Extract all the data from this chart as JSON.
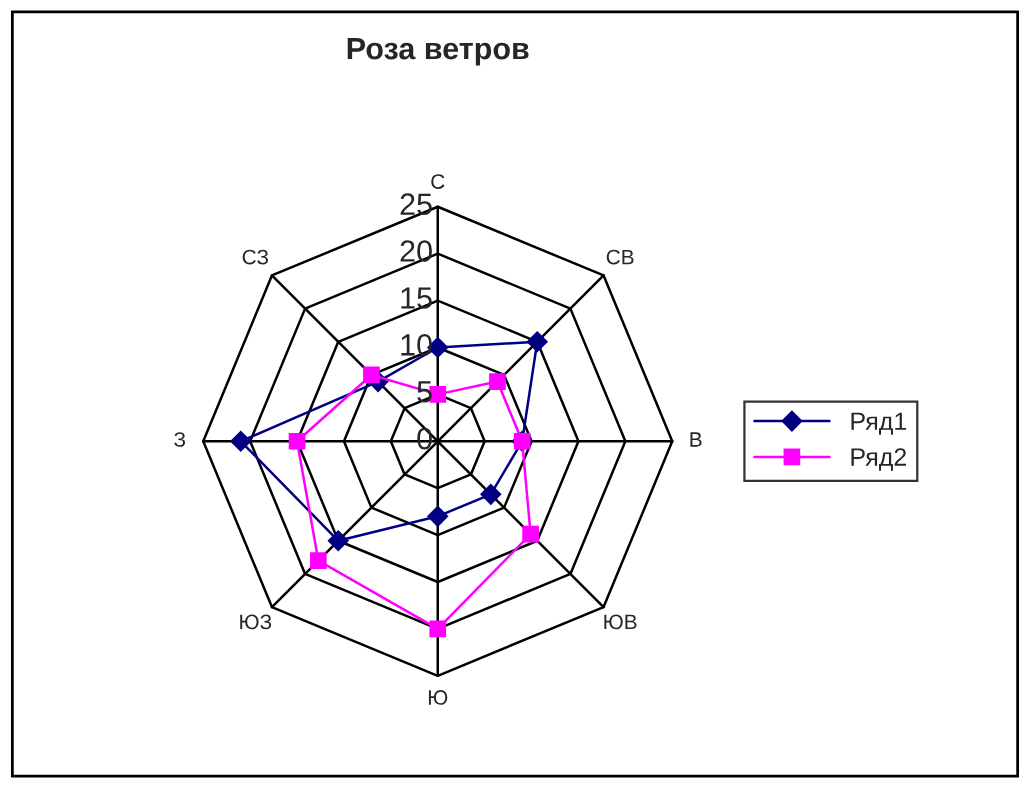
{
  "chart_data": {
    "type": "radar",
    "title": "Роза ветров",
    "categories": [
      "С",
      "СВ",
      "В",
      "ЮВ",
      "Ю",
      "ЮЗ",
      "З",
      "СЗ"
    ],
    "series": [
      {
        "name": "Ряд1",
        "color": "#000080",
        "marker": "diamond",
        "values": [
          10,
          15,
          9,
          8,
          8,
          15,
          21,
          9
        ]
      },
      {
        "name": "Ряд2",
        "color": "#ff00ff",
        "marker": "square",
        "values": [
          5,
          9,
          9,
          14,
          20,
          18,
          15,
          10
        ]
      }
    ],
    "ylim": [
      0,
      25
    ],
    "yticks": [
      0,
      5,
      10,
      15,
      20,
      25
    ],
    "grid": true,
    "legend": "right",
    "line_style": "solid"
  }
}
